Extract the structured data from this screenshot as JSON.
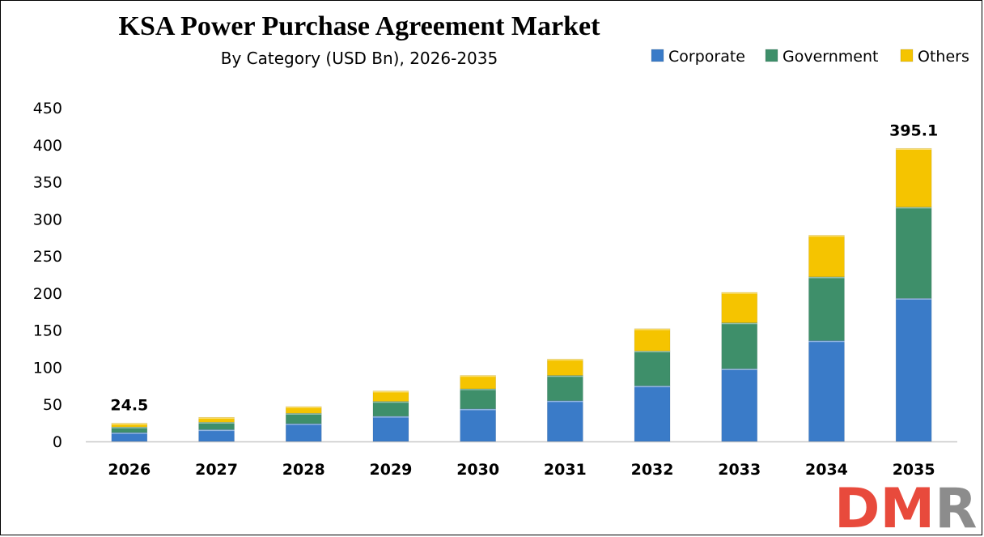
{
  "chart_data": {
    "type": "bar",
    "stacked": true,
    "title": "KSA Power Purchase Agreement Market",
    "subtitle": "By Category (USD Bn), 2026-2035",
    "categories": [
      "2026",
      "2027",
      "2028",
      "2029",
      "2030",
      "2031",
      "2032",
      "2033",
      "2034",
      "2035"
    ],
    "series": [
      {
        "name": "Corporate",
        "color": "#3a7bc8",
        "values": [
          12.0,
          16.0,
          24.0,
          34.0,
          44.0,
          55.0,
          75.0,
          98.0,
          136.0,
          193.0
        ]
      },
      {
        "name": "Government",
        "color": "#3e8f6a",
        "values": [
          7.5,
          10.0,
          14.0,
          20.0,
          27.0,
          34.0,
          47.0,
          62.0,
          86.0,
          123.0
        ]
      },
      {
        "name": "Others",
        "color": "#f5c400",
        "values": [
          5.0,
          6.5,
          9.0,
          14.0,
          18.0,
          22.0,
          30.0,
          41.0,
          56.0,
          79.1
        ]
      }
    ],
    "totals_labels": [
      {
        "category": "2026",
        "label": "24.5",
        "value": 24.5
      },
      {
        "category": "2035",
        "label": "395.1",
        "value": 395.1
      }
    ],
    "xlabel": "",
    "ylabel": "",
    "ylim": [
      0,
      450
    ],
    "yticks": [
      0,
      50,
      100,
      150,
      200,
      250,
      300,
      350,
      400,
      450
    ],
    "grid": false,
    "legend": "top-right"
  },
  "logo": {
    "text": "DMR",
    "colors": [
      "#e84a3c",
      "#8c8c8c"
    ]
  }
}
